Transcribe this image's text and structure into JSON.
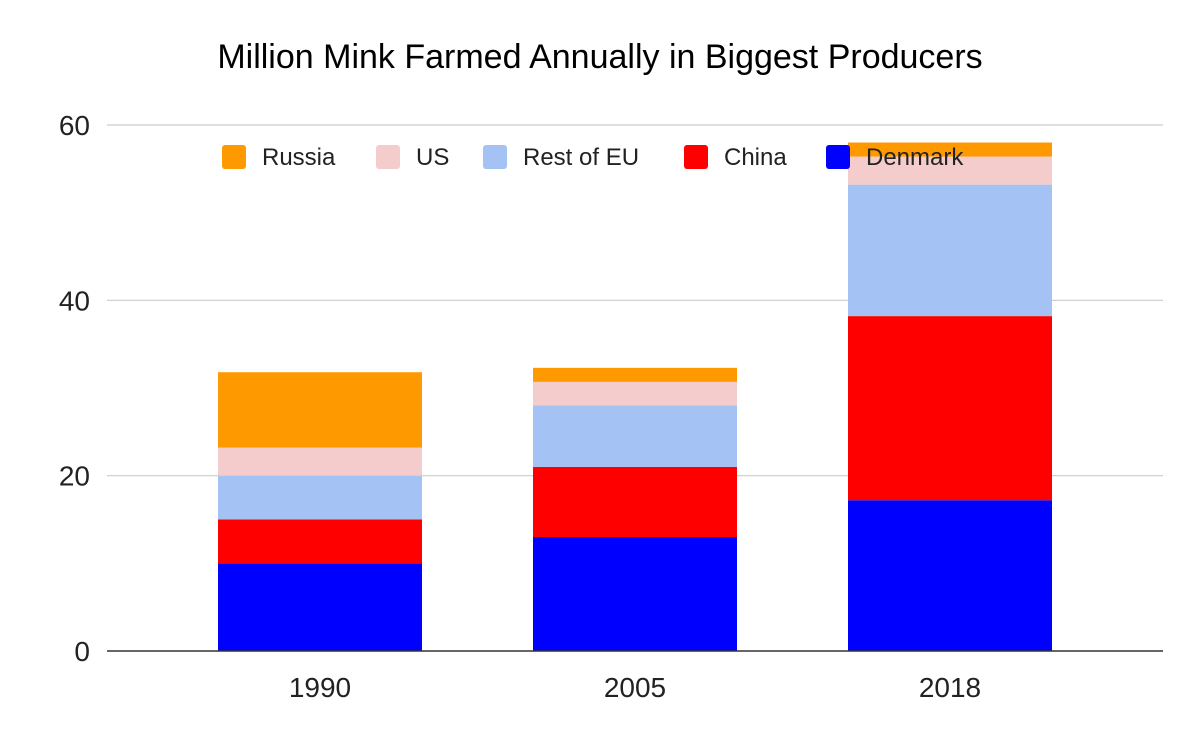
{
  "chart_data": {
    "type": "bar",
    "stacked": true,
    "title": "Million Mink Farmed Annually in Biggest Producers",
    "xlabel": "",
    "ylabel": "",
    "categories": [
      "1990",
      "2005",
      "2018"
    ],
    "ylim": [
      0,
      60
    ],
    "yticks": [
      "0",
      "20",
      "40",
      "60"
    ],
    "grid": true,
    "legend_position": "top",
    "series": [
      {
        "name": "Denmark",
        "color": "#0000ff",
        "values": [
          10,
          13,
          17.2
        ]
      },
      {
        "name": "China",
        "color": "#ff0000",
        "values": [
          5,
          8,
          21
        ]
      },
      {
        "name": "Rest of EU",
        "color": "#a4c2f4",
        "values": [
          5,
          7,
          15
        ]
      },
      {
        "name": "US",
        "color": "#f4cccc",
        "values": [
          3.2,
          2.7,
          3.2
        ]
      },
      {
        "name": "Russia",
        "color": "#ff9900",
        "values": [
          8.6,
          1.6,
          1.6
        ]
      }
    ],
    "legend_order": [
      "Russia",
      "US",
      "Rest of EU",
      "China",
      "Denmark"
    ]
  }
}
